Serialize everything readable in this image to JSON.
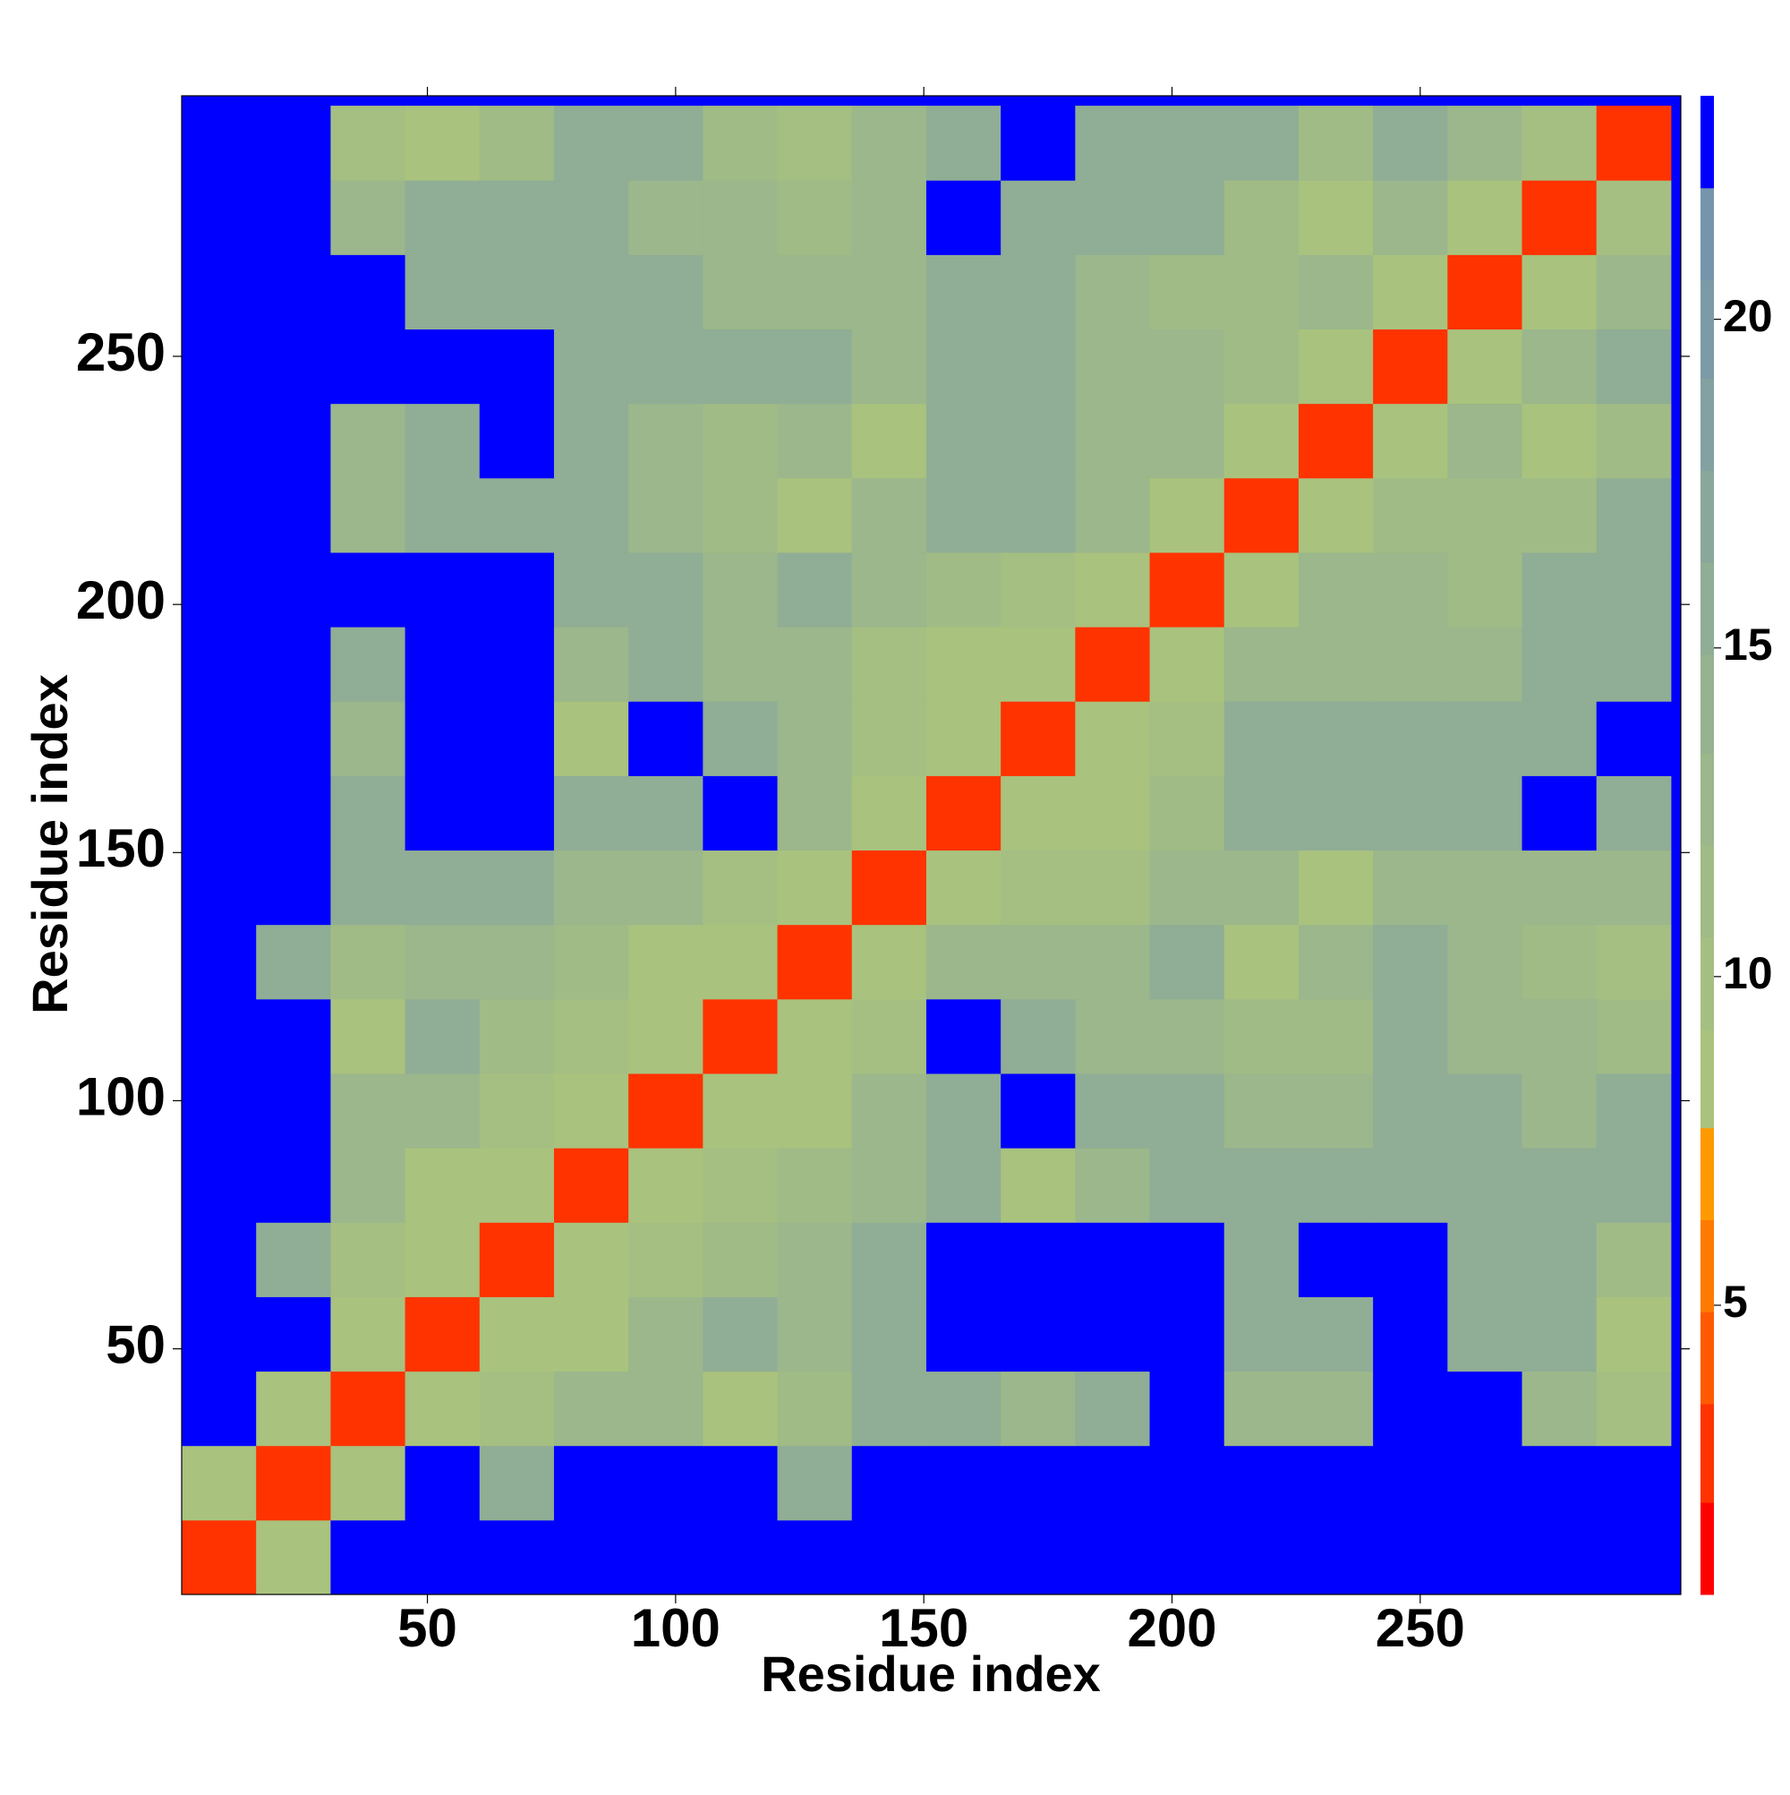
{
  "chart_data": {
    "type": "heatmap",
    "xlabel": "Residue index",
    "ylabel": "Residue index",
    "xlim": [
      0.5,
      302.5
    ],
    "ylim": [
      0.5,
      302.5
    ],
    "xticks": [
      50,
      100,
      150,
      200,
      250
    ],
    "yticks": [
      50,
      100,
      150,
      200,
      250
    ],
    "x_bins": [
      0.5,
      15.5,
      30.5,
      45.5,
      60.5,
      75.5,
      90.5,
      105.5,
      120.5,
      135.5,
      150.5,
      165.5,
      180.5,
      195.5,
      210.5,
      225.5,
      240.5,
      255.5,
      270.5,
      285.5,
      300.5
    ],
    "y_bins": [
      0.5,
      15.5,
      30.5,
      45.5,
      60.5,
      75.5,
      90.5,
      105.5,
      120.5,
      135.5,
      150.5,
      165.5,
      180.5,
      195.5,
      210.5,
      225.5,
      240.5,
      255.5,
      270.5,
      285.5,
      300.5
    ],
    "z": [
      [
        3,
        8,
        23,
        23,
        23,
        23,
        23,
        23,
        23,
        23,
        23,
        23,
        23,
        23,
        23,
        23,
        23,
        23,
        23,
        23
      ],
      [
        8,
        3,
        9,
        23,
        16,
        23,
        23,
        23,
        16,
        23,
        23,
        23,
        23,
        23,
        23,
        23,
        23,
        23,
        23,
        23
      ],
      [
        23,
        9,
        3,
        9,
        10,
        12,
        12,
        9,
        11,
        16,
        16,
        12,
        16,
        23,
        12,
        12,
        23,
        23,
        12,
        10
      ],
      [
        23,
        23,
        9,
        3,
        9,
        8,
        12,
        16,
        12,
        16,
        23,
        23,
        23,
        23,
        16,
        16,
        23,
        16,
        16,
        8
      ],
      [
        23,
        16,
        10,
        9,
        3,
        9,
        10,
        11,
        12,
        16,
        23,
        23,
        23,
        23,
        16,
        23,
        23,
        16,
        16,
        11
      ],
      [
        23,
        23,
        12,
        8,
        9,
        3,
        9,
        10,
        11,
        12,
        16,
        9,
        12,
        16,
        16,
        16,
        16,
        16,
        16,
        16
      ],
      [
        23,
        23,
        12,
        12,
        10,
        9,
        3,
        8,
        9,
        12,
        16,
        23,
        16,
        16,
        12,
        12,
        16,
        16,
        12,
        16
      ],
      [
        23,
        23,
        9,
        16,
        11,
        10,
        8,
        3,
        8,
        10,
        23,
        16,
        12,
        12,
        11,
        11,
        16,
        12,
        12,
        11
      ],
      [
        23,
        16,
        11,
        12,
        12,
        11,
        9,
        8,
        3,
        9,
        12,
        12,
        12,
        16,
        9,
        12,
        16,
        12,
        11,
        10
      ],
      [
        23,
        23,
        16,
        16,
        16,
        12,
        12,
        10,
        9,
        3,
        9,
        10,
        10,
        12,
        12,
        8,
        12,
        12,
        12,
        12
      ],
      [
        23,
        23,
        16,
        23,
        23,
        16,
        16,
        23,
        12,
        9,
        3,
        8,
        9,
        11,
        16,
        16,
        16,
        16,
        23,
        16
      ],
      [
        23,
        23,
        12,
        23,
        23,
        9,
        23,
        16,
        12,
        10,
        8,
        3,
        8,
        10,
        16,
        16,
        16,
        16,
        16,
        23
      ],
      [
        23,
        23,
        16,
        23,
        23,
        12,
        16,
        12,
        12,
        10,
        9,
        8,
        3,
        8,
        12,
        12,
        12,
        12,
        16,
        16
      ],
      [
        23,
        23,
        23,
        23,
        23,
        16,
        16,
        12,
        16,
        12,
        11,
        10,
        8,
        3,
        8,
        12,
        12,
        11,
        16,
        16
      ],
      [
        23,
        23,
        12,
        16,
        16,
        16,
        12,
        11,
        9,
        12,
        16,
        16,
        12,
        8,
        3,
        9,
        11,
        11,
        11,
        16
      ],
      [
        23,
        23,
        12,
        16,
        23,
        16,
        12,
        11,
        12,
        8,
        16,
        16,
        12,
        12,
        9,
        3,
        8,
        12,
        8,
        11
      ],
      [
        23,
        23,
        23,
        23,
        23,
        16,
        16,
        16,
        16,
        12,
        16,
        16,
        12,
        12,
        11,
        8,
        3,
        9,
        12,
        16
      ],
      [
        23,
        23,
        23,
        16,
        16,
        16,
        16,
        12,
        12,
        12,
        16,
        16,
        12,
        11,
        11,
        12,
        9,
        3,
        9,
        12
      ],
      [
        23,
        23,
        12,
        16,
        16,
        16,
        12,
        12,
        11,
        12,
        23,
        16,
        16,
        16,
        11,
        8,
        12,
        9,
        3,
        10
      ],
      [
        23,
        23,
        10,
        8,
        11,
        16,
        16,
        11,
        10,
        12,
        16,
        23,
        16,
        16,
        16,
        11,
        16,
        12,
        10,
        3
      ]
    ],
    "colorbar": {
      "levels": [
        0.6,
        2.0,
        3.5,
        4.9,
        6.3,
        7.7,
        9.2,
        10.6,
        12.0,
        13.4,
        14.9,
        16.3,
        17.7,
        19.1,
        20.6,
        22.0,
        23.4
      ],
      "colors": [
        "#ff0000",
        "#ff3300",
        "#ff5a00",
        "#ff7a00",
        "#ff9900",
        "#a9c27e",
        "#a5bf82",
        "#a0bb86",
        "#9bb78b",
        "#96b290",
        "#90ad95",
        "#8aa79b",
        "#83a1a1",
        "#7c9ba7",
        "#7595ad",
        "#0000ff"
      ],
      "ticks": [
        5,
        10,
        15,
        20
      ]
    }
  }
}
